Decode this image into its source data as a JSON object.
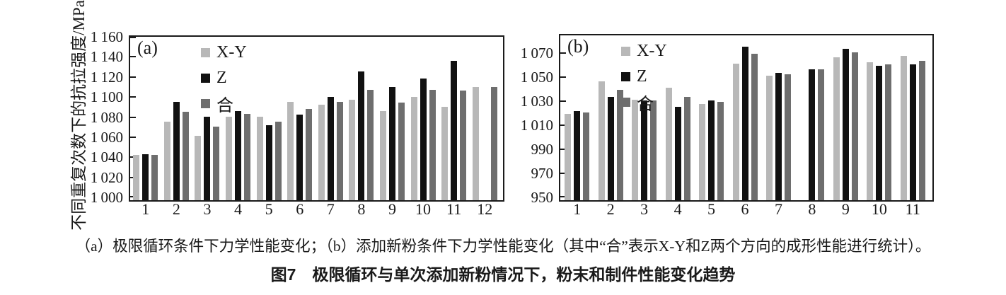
{
  "figure": {
    "caption_line1": "（a）极限循环条件下力学性能变化；（b）添加新粉条件下力学性能变化（其中“合”表示X-Y和Z两个方向的成形性能进行统计）。",
    "caption_line2": "图7　极限循环与单次添加新粉情况下，粉末和制件性能变化趋势"
  },
  "colors": {
    "series_xy": "#b8b8b8",
    "series_z": "#111111",
    "series_he": "#6e6e6e",
    "axis": "#1a1a1a"
  },
  "chart_data": [
    {
      "type": "bar",
      "panel_label": "(a)",
      "title": "",
      "xlabel": "",
      "ylabel": "不同重复次数下的抗拉强度/MPa",
      "categories": [
        "1",
        "2",
        "3",
        "4",
        "5",
        "6",
        "7",
        "8",
        "9",
        "10",
        "11",
        "12"
      ],
      "series": [
        {
          "name": "X-Y",
          "color": "#b8b8b8",
          "values": [
            1045,
            1078,
            1064,
            1083,
            1083,
            1098,
            1095,
            1100,
            1089,
            1103,
            1093,
            1113
          ]
        },
        {
          "name": "Z",
          "color": "#111111",
          "values": [
            1046,
            1098,
            1083,
            1089,
            1075,
            1085,
            1103,
            1128,
            1113,
            1121,
            1139,
            null
          ]
        },
        {
          "name": "合",
          "color": "#6e6e6e",
          "values": [
            1045,
            1088,
            1073,
            1086,
            1078,
            1091,
            1098,
            1110,
            1097,
            1110,
            1109,
            1113
          ]
        }
      ],
      "ylim": [
        1000,
        1160
      ],
      "ytick_step": 20,
      "ytick_labels": [
        "1 000",
        "1 020",
        "1 040",
        "1 060",
        "1 080",
        "1 100",
        "1 120",
        "1 140",
        "1 160"
      ],
      "grid": false,
      "legend_position": "upper-left-inside"
    },
    {
      "type": "bar",
      "panel_label": "(b)",
      "title": "",
      "xlabel": "",
      "ylabel": "",
      "categories": [
        "1",
        "2",
        "3",
        "4",
        "5",
        "6",
        "7",
        "8",
        "9",
        "10",
        "11"
      ],
      "series": [
        {
          "name": "X-Y",
          "color": "#b8b8b8",
          "values": [
            1022,
            1049,
            1034,
            1044,
            1030,
            1064,
            1054,
            null,
            1069,
            1065,
            1070
          ]
        },
        {
          "name": "Z",
          "color": "#111111",
          "values": [
            1024,
            1036,
            1033,
            1028,
            1033,
            1078,
            1056,
            1059,
            1076,
            1062,
            1063
          ]
        },
        {
          "name": "合",
          "color": "#6e6e6e",
          "values": [
            1023,
            1042,
            1033,
            1036,
            1032,
            1072,
            1055,
            1059,
            1073,
            1063,
            1066
          ]
        }
      ],
      "ylim": [
        950,
        1085
      ],
      "ytick_step": 20,
      "ytick_labels": [
        "950",
        "970",
        "990",
        "1 010",
        "1 030",
        "1 050",
        "1 070"
      ],
      "grid": false,
      "legend_position": "upper-left-inside"
    }
  ]
}
